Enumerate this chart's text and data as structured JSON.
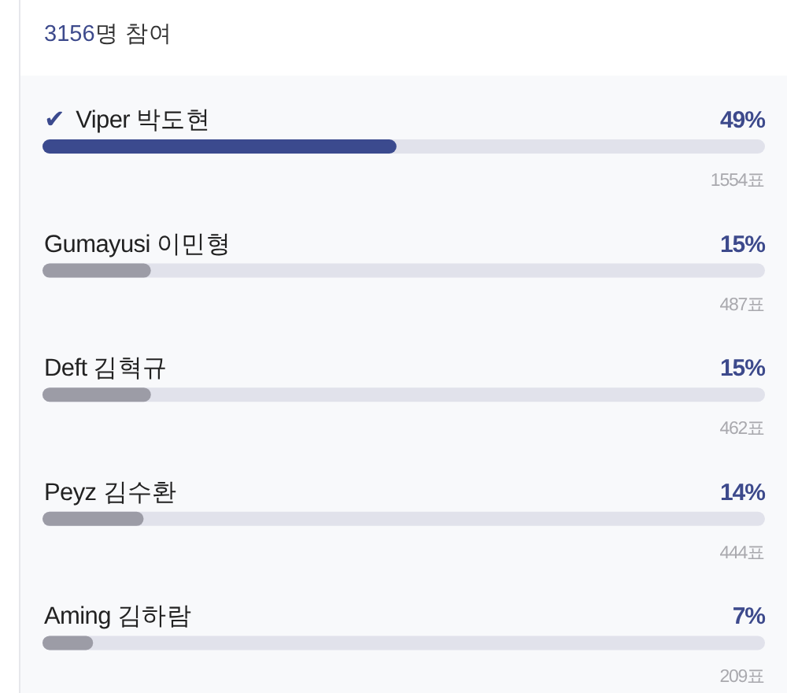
{
  "chart_data": {
    "type": "bar",
    "orientation": "horizontal",
    "title": "3156명 참여",
    "categories": [
      "✔ Viper 박도현",
      "Gumayusi 이민형",
      "Deft 김혁규",
      "Peyz 김수환",
      "Aming 김하람"
    ],
    "values": [
      49,
      15,
      15,
      14,
      7
    ],
    "colors": [
      "#3b4a8e",
      "#9c9ca6",
      "#9c9ca6",
      "#9c9ca6",
      "#9c9ca6"
    ],
    "value_labels": [
      "49%",
      "15%",
      "15%",
      "14%",
      "7%"
    ],
    "xlim": [
      0,
      100
    ],
    "annotations": [
      "1554표",
      "487표",
      "462표",
      "444표",
      "209표"
    ]
  }
}
